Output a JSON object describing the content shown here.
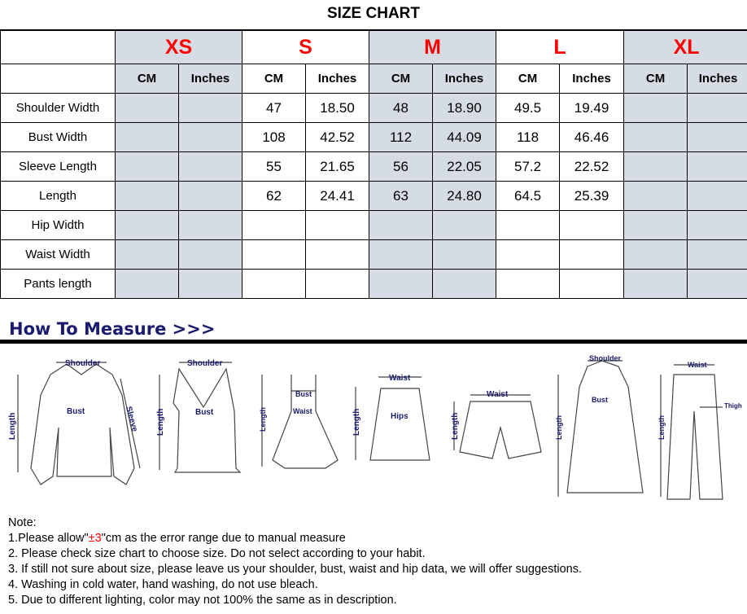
{
  "title": "SIZE CHART",
  "sizes": [
    "XS",
    "S",
    "M",
    "L",
    "XL"
  ],
  "unit_headers": {
    "cm": "CM",
    "inches": "Inches"
  },
  "rows": [
    {
      "label": "Shoulder Width",
      "values": [
        "",
        "",
        "47",
        "18.50",
        "48",
        "18.90",
        "49.5",
        "19.49",
        "",
        ""
      ]
    },
    {
      "label": "Bust Width",
      "values": [
        "",
        "",
        "108",
        "42.52",
        "112",
        "44.09",
        "118",
        "46.46",
        "",
        ""
      ]
    },
    {
      "label": "Sleeve Length",
      "values": [
        "",
        "",
        "55",
        "21.65",
        "56",
        "22.05",
        "57.2",
        "22.52",
        "",
        ""
      ]
    },
    {
      "label": "Length",
      "values": [
        "",
        "",
        "62",
        "24.41",
        "63",
        "24.80",
        "64.5",
        "25.39",
        "",
        ""
      ]
    },
    {
      "label": "Hip Width",
      "values": [
        "",
        "",
        "",
        "",
        "",
        "",
        "",
        "",
        "",
        ""
      ]
    },
    {
      "label": "Waist Width",
      "values": [
        "",
        "",
        "",
        "",
        "",
        "",
        "",
        "",
        "",
        ""
      ]
    },
    {
      "label": "Pants length",
      "values": [
        "",
        "",
        "",
        "",
        "",
        "",
        "",
        "",
        "",
        ""
      ]
    }
  ],
  "colors": {
    "size_label": "#ff0000",
    "shaded_column": "#d6dce4",
    "measure_text": "#1a1a6e"
  },
  "how_to_measure": "How To Measure >>>",
  "diagram_labels": {
    "shoulder": "Shoulder",
    "bust": "Bust",
    "sleeve": "Sleeve",
    "length": "Length",
    "waist": "Waist",
    "hips": "Hips",
    "thigh": "Thigh"
  },
  "notes": {
    "heading": "Note:",
    "line1_pre": "1.Please allow\"",
    "line1_red": "±3",
    "line1_post": "\"cm as the error range due to manual measure",
    "line2": "2. Please check size chart to choose size. Do not select according to your habit.",
    "line3": "3. If still not sure about size, please leave us your shoulder, bust, waist and hip data, we will offer suggestions.",
    "line4": "4. Washing in cold water, hand washing, do not use bleach.",
    "line5": "5. Due to different lighting, color may not 100% the same as in description."
  }
}
